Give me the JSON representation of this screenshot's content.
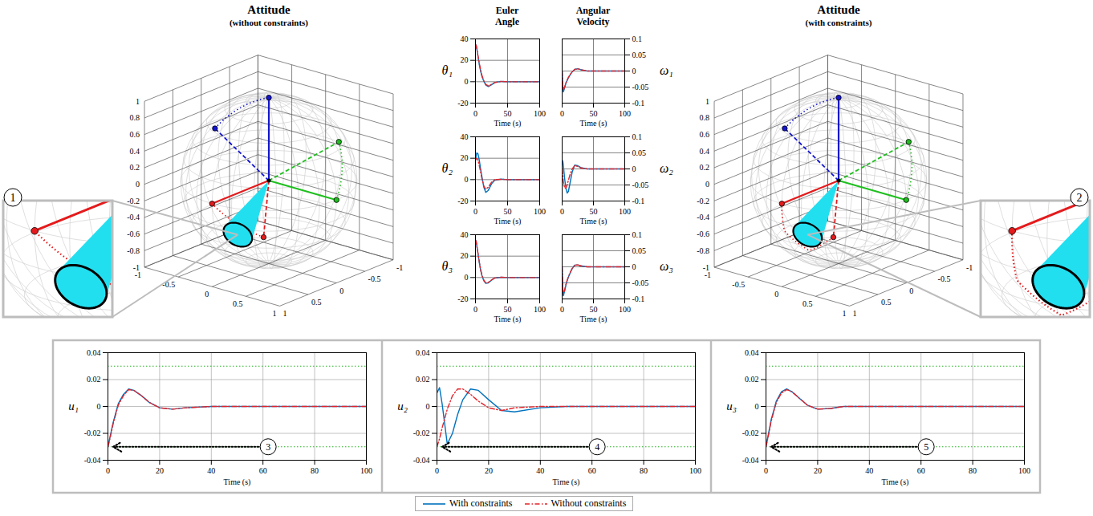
{
  "legend": "bottom",
  "chart_data": [
    {
      "type": "attitude_3d",
      "title": "Attitude",
      "subtitle": "(without constraints)",
      "xlim": [
        -1,
        1
      ],
      "ylim": [
        -1,
        1
      ],
      "zlim": [
        -1,
        1
      ],
      "xticks": [
        -1,
        -0.5,
        0,
        0.5,
        1
      ],
      "yticks": [
        -1,
        -0.5,
        0,
        0.5,
        1
      ],
      "zticks": [
        -1,
        -0.8,
        -0.6,
        -0.4,
        -0.2,
        0,
        0.2,
        0.4,
        0.6,
        0.8,
        1
      ],
      "grid": true,
      "annotation": "1",
      "cone": {
        "axis": [
          0.894,
          0.284,
          -0.347
        ],
        "half_angle_deg": 10,
        "color": "#22dff0"
      },
      "axes": [
        {
          "color": "#e41a1c",
          "initial": [
            0.76,
            0.56,
            -0.34
          ],
          "final": [
            1,
            0,
            0
          ],
          "via": []
        },
        {
          "color": "#1fbf1f",
          "initial": [
            -0.318,
            0.769,
            0.558
          ],
          "final": [
            0,
            1,
            0
          ],
          "via": []
        },
        {
          "color": "#1515d0",
          "initial": [
            0.619,
            -0.277,
            0.736
          ],
          "final": [
            0,
            0,
            1
          ],
          "via": []
        }
      ]
    },
    {
      "type": "attitude_3d",
      "title": "Attitude",
      "subtitle": "(with constraints)",
      "xlim": [
        -1,
        1
      ],
      "ylim": [
        -1,
        1
      ],
      "zlim": [
        -1,
        1
      ],
      "xticks": [
        -1,
        -0.5,
        0,
        0.5,
        1
      ],
      "yticks": [
        -1,
        -0.5,
        0,
        0.5,
        1
      ],
      "zticks": [
        -1,
        -0.8,
        -0.6,
        -0.4,
        -0.2,
        0,
        0.2,
        0.4,
        0.6,
        0.8,
        1
      ],
      "grid": true,
      "annotation": "2",
      "cone": {
        "axis": [
          0.894,
          0.284,
          -0.347
        ],
        "half_angle_deg": 10,
        "color": "#22dff0"
      },
      "axes": [
        {
          "color": "#e41a1c",
          "initial": [
            0.76,
            0.56,
            -0.34
          ],
          "final": [
            1,
            0,
            0
          ],
          "via": [
            [
              0.79,
              0.23,
              -0.57
            ],
            [
              0.94,
              -0.01,
              -0.35
            ]
          ]
        },
        {
          "color": "#1fbf1f",
          "initial": [
            -0.318,
            0.769,
            0.558
          ],
          "final": [
            0,
            1,
            0
          ],
          "via": []
        },
        {
          "color": "#1515d0",
          "initial": [
            0.619,
            -0.277,
            0.736
          ],
          "final": [
            0,
            0,
            1
          ],
          "via": []
        }
      ]
    },
    {
      "type": "line",
      "group": "Euler Angle",
      "ylabel": "θ₁",
      "xlabel": "Time (s)",
      "xlim": [
        0,
        100
      ],
      "xticks": [
        0,
        50,
        100
      ],
      "ylim": [
        -20,
        40
      ],
      "yticks": [
        -20,
        0,
        20,
        40
      ],
      "grid": true,
      "x": [
        0,
        1,
        2,
        4,
        6,
        8,
        10,
        13,
        16,
        20,
        25,
        30,
        40,
        50,
        60,
        80,
        100
      ],
      "series": [
        {
          "name": "With constraints",
          "color": "#0072bd",
          "line_style": "solid",
          "values": [
            35,
            34,
            31,
            23.5,
            16,
            10,
            5,
            0.5,
            -3,
            -4.5,
            -2.8,
            -0.8,
            0.3,
            0,
            0,
            0,
            0
          ]
        },
        {
          "name": "Without constraints",
          "color": "#e3242b",
          "line_style": "dashdot",
          "values": [
            35,
            34,
            31,
            24,
            17,
            11,
            6,
            1,
            -2.5,
            -4,
            -2.5,
            -0.8,
            0.3,
            0,
            0,
            0,
            0
          ]
        }
      ]
    },
    {
      "type": "line",
      "group": "Euler Angle",
      "ylabel": "θ₂",
      "xlabel": "Time (s)",
      "xlim": [
        0,
        100
      ],
      "xticks": [
        0,
        50,
        100
      ],
      "ylim": [
        -20,
        40
      ],
      "yticks": [
        -20,
        0,
        20,
        40
      ],
      "grid": true,
      "x": [
        0,
        1,
        2,
        4,
        6,
        8,
        10,
        13,
        16,
        20,
        25,
        30,
        40,
        50,
        60,
        80,
        100
      ],
      "series": [
        {
          "name": "With constraints",
          "color": "#0072bd",
          "line_style": "solid",
          "values": [
            18,
            22,
            25,
            24,
            18,
            10,
            3,
            -7,
            -12,
            -10,
            -4,
            -0.5,
            0.5,
            0,
            0,
            0,
            0
          ]
        },
        {
          "name": "Without constraints",
          "color": "#e3242b",
          "line_style": "dashdot",
          "values": [
            18,
            19.5,
            20,
            18,
            13,
            7,
            1,
            -6,
            -9,
            -7,
            -2.5,
            0,
            0.3,
            0,
            0,
            0,
            0
          ]
        }
      ]
    },
    {
      "type": "line",
      "group": "Euler Angle",
      "ylabel": "θ₃",
      "xlabel": "Time (s)",
      "xlim": [
        0,
        100
      ],
      "xticks": [
        0,
        50,
        100
      ],
      "ylim": [
        -20,
        40
      ],
      "yticks": [
        -20,
        0,
        20,
        40
      ],
      "grid": true,
      "x": [
        0,
        1,
        2,
        4,
        6,
        8,
        10,
        13,
        16,
        20,
        25,
        30,
        40,
        50,
        60,
        80,
        100
      ],
      "series": [
        {
          "name": "With constraints",
          "color": "#0072bd",
          "line_style": "solid",
          "values": [
            35,
            34,
            30,
            22,
            14,
            7,
            2,
            -3,
            -5.5,
            -5,
            -2.5,
            -0.5,
            0.3,
            0,
            0,
            0,
            0
          ]
        },
        {
          "name": "Without constraints",
          "color": "#e3242b",
          "line_style": "dashdot",
          "values": [
            35,
            34,
            30,
            22.5,
            14.5,
            7.5,
            2.5,
            -2.5,
            -5,
            -4.5,
            -2.2,
            -0.4,
            0.3,
            0,
            0,
            0,
            0
          ]
        }
      ]
    },
    {
      "type": "line",
      "group": "Angular Velocity",
      "ylabel": "ω₁",
      "xlabel": "Time (s)",
      "xlim": [
        0,
        100
      ],
      "xticks": [
        0,
        50,
        100
      ],
      "ylim": [
        -0.1,
        0.1
      ],
      "yticks": [
        -0.1,
        -0.05,
        0,
        0.05,
        0.1
      ],
      "grid": true,
      "x": [
        0,
        1,
        2,
        4,
        6,
        8,
        10,
        13,
        16,
        20,
        25,
        30,
        40,
        50,
        60,
        80,
        100
      ],
      "series": [
        {
          "name": "With constraints",
          "color": "#0072bd",
          "line_style": "solid",
          "values": [
            0,
            -0.05,
            -0.065,
            -0.052,
            -0.038,
            -0.029,
            -0.021,
            -0.011,
            -0.003,
            0.005,
            0.007,
            0.004,
            0,
            0,
            0,
            0,
            0
          ]
        },
        {
          "name": "Without constraints",
          "color": "#e3242b",
          "line_style": "dashdot",
          "values": [
            0,
            -0.045,
            -0.06,
            -0.05,
            -0.037,
            -0.028,
            -0.02,
            -0.01,
            -0.003,
            0.005,
            0.007,
            0.004,
            0,
            0,
            0,
            0,
            0
          ]
        }
      ]
    },
    {
      "type": "line",
      "group": "Angular Velocity",
      "ylabel": "ω₂",
      "xlabel": "Time (s)",
      "xlim": [
        0,
        100
      ],
      "xticks": [
        0,
        50,
        100
      ],
      "ylim": [
        -0.1,
        0.1
      ],
      "yticks": [
        -0.1,
        -0.05,
        0,
        0.05,
        0.1
      ],
      "grid": true,
      "x": [
        0,
        1,
        2,
        4,
        6,
        8,
        10,
        13,
        16,
        20,
        25,
        30,
        40,
        50,
        60,
        80,
        100
      ],
      "series": [
        {
          "name": "With constraints",
          "color": "#0072bd",
          "line_style": "solid",
          "values": [
            0.02,
            0.025,
            0.01,
            -0.03,
            -0.06,
            -0.075,
            -0.07,
            -0.04,
            -0.01,
            0.012,
            0.01,
            0.004,
            0,
            0,
            0,
            0,
            0
          ]
        },
        {
          "name": "Without constraints",
          "color": "#e3242b",
          "line_style": "dashdot",
          "values": [
            0,
            -0.02,
            -0.04,
            -0.06,
            -0.06,
            -0.05,
            -0.035,
            -0.015,
            0,
            0.01,
            0.008,
            0.003,
            0,
            0,
            0,
            0,
            0
          ]
        }
      ]
    },
    {
      "type": "line",
      "group": "Angular Velocity",
      "ylabel": "ω₃",
      "xlabel": "Time (s)",
      "xlim": [
        0,
        100
      ],
      "xticks": [
        0,
        50,
        100
      ],
      "ylim": [
        -0.1,
        0.1
      ],
      "yticks": [
        -0.1,
        -0.05,
        0,
        0.05,
        0.1
      ],
      "grid": true,
      "x": [
        0,
        1,
        2,
        4,
        6,
        8,
        10,
        13,
        16,
        20,
        25,
        30,
        40,
        50,
        60,
        80,
        100
      ],
      "series": [
        {
          "name": "With constraints",
          "color": "#0072bd",
          "line_style": "solid",
          "values": [
            0,
            -0.07,
            -0.09,
            -0.075,
            -0.057,
            -0.043,
            -0.032,
            -0.018,
            -0.006,
            0.005,
            0.006,
            0.003,
            0,
            0,
            0,
            0,
            0
          ]
        },
        {
          "name": "Without constraints",
          "color": "#e3242b",
          "line_style": "dashdot",
          "values": [
            0,
            -0.065,
            -0.085,
            -0.072,
            -0.055,
            -0.042,
            -0.031,
            -0.017,
            -0.005,
            0.005,
            0.006,
            0.003,
            0,
            0,
            0,
            0,
            0
          ]
        }
      ]
    },
    {
      "type": "line",
      "ylabel": "u₁",
      "xlabel": "Time (s)",
      "xlim": [
        0,
        100
      ],
      "xticks": [
        0,
        20,
        40,
        60,
        80,
        100
      ],
      "ylim": [
        -0.04,
        0.04
      ],
      "yticks": [
        -0.04,
        -0.02,
        0,
        0.02,
        0.04
      ],
      "grid": true,
      "limits": {
        "values": [
          -0.03,
          0.03
        ],
        "color": "#22b022",
        "line_style": "dotted"
      },
      "annotations": [
        {
          "text": "3",
          "x": 62,
          "y": -0.03,
          "arrow_to_x": 2
        }
      ],
      "x": [
        0,
        1,
        2,
        4,
        6,
        8,
        10,
        13,
        16,
        20,
        25,
        30,
        40,
        50,
        60,
        80,
        100
      ],
      "series": [
        {
          "name": "With constraints",
          "color": "#0072bd",
          "line_style": "solid",
          "values": [
            -0.03,
            -0.021,
            -0.012,
            0.002,
            0.009,
            0.013,
            0.012,
            0.008,
            0.003,
            -0.001,
            -0.002,
            -0.001,
            0,
            0,
            0,
            0,
            0
          ]
        },
        {
          "name": "Without constraints",
          "color": "#e3242b",
          "line_style": "dashdot",
          "values": [
            -0.03,
            -0.022,
            -0.013,
            0.001,
            0.008,
            0.0125,
            0.012,
            0.008,
            0.003,
            -0.001,
            -0.002,
            -0.001,
            0,
            0,
            0,
            0,
            0
          ]
        }
      ]
    },
    {
      "type": "line",
      "ylabel": "u₂",
      "xlabel": "Time (s)",
      "xlim": [
        0,
        100
      ],
      "xticks": [
        0,
        20,
        40,
        60,
        80,
        100
      ],
      "ylim": [
        -0.04,
        0.04
      ],
      "yticks": [
        -0.04,
        -0.02,
        0,
        0.02,
        0.04
      ],
      "grid": true,
      "limits": {
        "values": [
          -0.03,
          0.03
        ],
        "color": "#22b022",
        "line_style": "dotted"
      },
      "annotations": [
        {
          "text": "4",
          "x": 62,
          "y": -0.03,
          "arrow_to_x": 2
        }
      ],
      "x": [
        0,
        1,
        2,
        4,
        6,
        8,
        10,
        13,
        16,
        20,
        25,
        30,
        40,
        50,
        60,
        80,
        100
      ],
      "series": [
        {
          "name": "With constraints",
          "color": "#0072bd",
          "line_style": "solid",
          "values": [
            0.01,
            0.014,
            0.002,
            -0.028,
            -0.02,
            -0.006,
            0.005,
            0.013,
            0.012,
            0.005,
            -0.003,
            -0.004,
            -0.001,
            0,
            0,
            0,
            0
          ]
        },
        {
          "name": "Without constraints",
          "color": "#e3242b",
          "line_style": "dashdot",
          "values": [
            -0.03,
            -0.024,
            -0.016,
            -0.002,
            0.008,
            0.013,
            0.013,
            0.009,
            0.004,
            -0.001,
            -0.003,
            -0.001,
            0,
            0,
            0,
            0,
            0
          ]
        }
      ]
    },
    {
      "type": "line",
      "ylabel": "u₃",
      "xlabel": "Time (s)",
      "xlim": [
        0,
        100
      ],
      "xticks": [
        0,
        20,
        40,
        60,
        80,
        100
      ],
      "ylim": [
        -0.04,
        0.04
      ],
      "yticks": [
        -0.04,
        -0.02,
        0,
        0.02,
        0.04
      ],
      "grid": true,
      "limits": {
        "values": [
          -0.03,
          0.03
        ],
        "color": "#22b022",
        "line_style": "dotted"
      },
      "annotations": [
        {
          "text": "5",
          "x": 62,
          "y": -0.03,
          "arrow_to_x": 2
        }
      ],
      "x": [
        0,
        1,
        2,
        4,
        6,
        8,
        10,
        13,
        16,
        20,
        25,
        30,
        40,
        50,
        60,
        80,
        100
      ],
      "series": [
        {
          "name": "With constraints",
          "color": "#0072bd",
          "line_style": "solid",
          "values": [
            -0.03,
            -0.02,
            -0.01,
            0.004,
            0.011,
            0.013,
            0.011,
            0.006,
            0.001,
            -0.002,
            -0.0015,
            0,
            0,
            0,
            0,
            0,
            0
          ]
        },
        {
          "name": "Without constraints",
          "color": "#e3242b",
          "line_style": "dashdot",
          "values": [
            -0.03,
            -0.021,
            -0.011,
            0.003,
            0.01,
            0.0125,
            0.011,
            0.006,
            0.001,
            -0.002,
            -0.0015,
            0,
            0,
            0,
            0,
            0,
            0
          ]
        }
      ]
    }
  ]
}
